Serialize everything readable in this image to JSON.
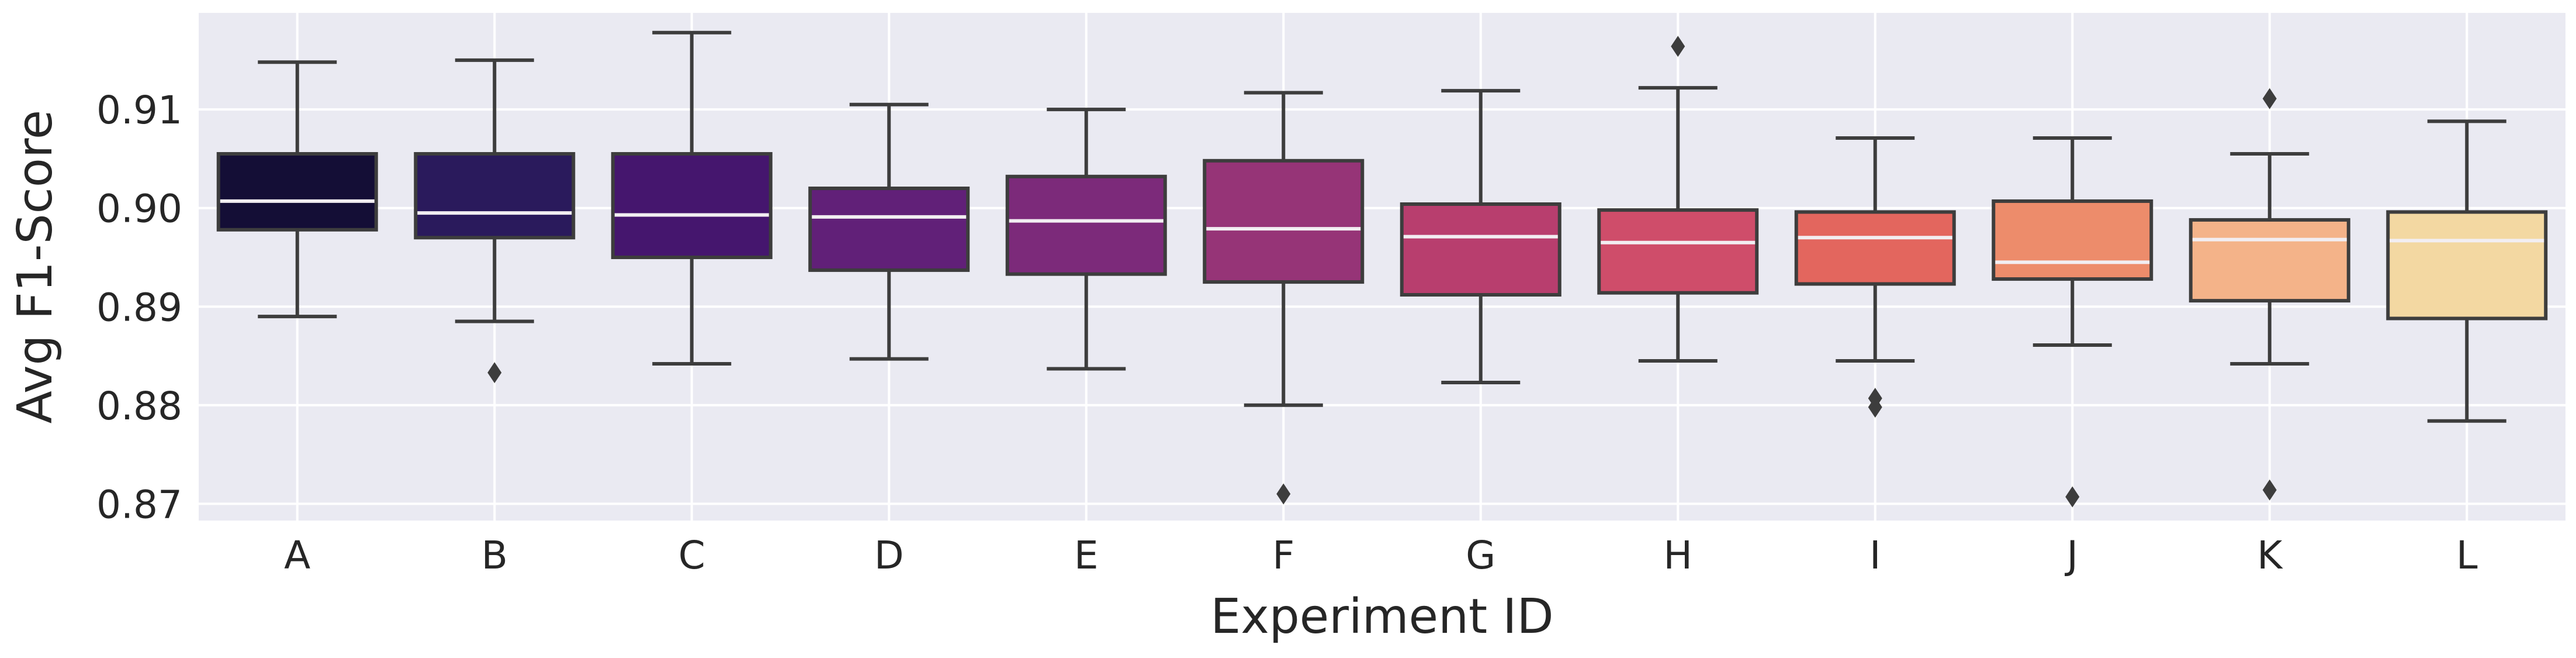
{
  "chart_data": {
    "type": "box",
    "title": "",
    "xlabel": "Experiment ID",
    "ylabel": "Avg F1-Score",
    "categories": [
      "A",
      "B",
      "C",
      "D",
      "E",
      "F",
      "G",
      "H",
      "I",
      "J",
      "K",
      "L"
    ],
    "ylim": [
      0.8683,
      0.9198
    ],
    "yticks": [
      0.87,
      0.88,
      0.89,
      0.9,
      0.91
    ],
    "ytick_labels": [
      "0.87",
      "0.88",
      "0.89",
      "0.90",
      "0.91"
    ],
    "grid": true,
    "boxes": [
      {
        "category": "A",
        "whisker_low": 0.889,
        "q1": 0.8978,
        "median": 0.9007,
        "q3": 0.9055,
        "whisker_high": 0.9148,
        "outliers": [],
        "color": "#140e36"
      },
      {
        "category": "B",
        "whisker_low": 0.8885,
        "q1": 0.897,
        "median": 0.8995,
        "q3": 0.9055,
        "whisker_high": 0.915,
        "outliers": [
          0.8833
        ],
        "color": "#2a1a5c"
      },
      {
        "category": "C",
        "whisker_low": 0.8842,
        "q1": 0.895,
        "median": 0.8993,
        "q3": 0.9055,
        "whisker_high": 0.9178,
        "outliers": [],
        "color": "#45166e"
      },
      {
        "category": "D",
        "whisker_low": 0.8847,
        "q1": 0.8937,
        "median": 0.8991,
        "q3": 0.902,
        "whisker_high": 0.9105,
        "outliers": [],
        "color": "#612078"
      },
      {
        "category": "E",
        "whisker_low": 0.8837,
        "q1": 0.8933,
        "median": 0.8987,
        "q3": 0.9032,
        "whisker_high": 0.91,
        "outliers": [],
        "color": "#7c2a7a"
      },
      {
        "category": "F",
        "whisker_low": 0.88,
        "q1": 0.8925,
        "median": 0.8979,
        "q3": 0.9048,
        "whisker_high": 0.9117,
        "outliers": [
          0.871
        ],
        "color": "#963477"
      },
      {
        "category": "G",
        "whisker_low": 0.8823,
        "q1": 0.8912,
        "median": 0.8971,
        "q3": 0.9004,
        "whisker_high": 0.9119,
        "outliers": [],
        "color": "#b83e6e"
      },
      {
        "category": "H",
        "whisker_low": 0.8845,
        "q1": 0.8914,
        "median": 0.8965,
        "q3": 0.8998,
        "whisker_high": 0.9122,
        "outliers": [
          0.9164
        ],
        "color": "#cf4d6a"
      },
      {
        "category": "I",
        "whisker_low": 0.8845,
        "q1": 0.8923,
        "median": 0.897,
        "q3": 0.8996,
        "whisker_high": 0.9071,
        "outliers": [
          0.8807,
          0.8798
        ],
        "color": "#e3665e"
      },
      {
        "category": "J",
        "whisker_low": 0.8861,
        "q1": 0.8928,
        "median": 0.8945,
        "q3": 0.9007,
        "whisker_high": 0.9071,
        "outliers": [
          0.8707
        ],
        "color": "#ed8c6b"
      },
      {
        "category": "K",
        "whisker_low": 0.8842,
        "q1": 0.8906,
        "median": 0.8968,
        "q3": 0.8988,
        "whisker_high": 0.9055,
        "outliers": [
          0.9111,
          0.8714
        ],
        "color": "#f4b389"
      },
      {
        "category": "L",
        "whisker_low": 0.8784,
        "q1": 0.8888,
        "median": 0.8967,
        "q3": 0.8996,
        "whisker_high": 0.9088,
        "outliers": [],
        "color": "#f3d8a2"
      }
    ]
  }
}
